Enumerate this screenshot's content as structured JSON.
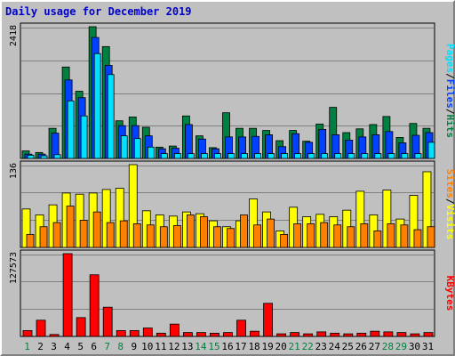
{
  "title": "Daily usage for December 2019",
  "colors": {
    "hits": "#008040",
    "files": "#0040ff",
    "pages": "#00e0ff",
    "visits": "#ffff00",
    "sites": "#ff8000",
    "kbytes": "#ff0000",
    "weekday_label": "#000000",
    "weekend_label": "#008040"
  },
  "chart_data": [
    {
      "type": "bar",
      "ylim": [
        0,
        2418
      ],
      "max_label": "2418",
      "legend_labels": {
        "pages": "Pages",
        "files": "Files",
        "hits": "Hits"
      },
      "legend_separator": "/",
      "categories": [
        "1",
        "2",
        "3",
        "4",
        "5",
        "6",
        "7",
        "8",
        "9",
        "10",
        "11",
        "12",
        "13",
        "14",
        "15",
        "16",
        "17",
        "18",
        "19",
        "20",
        "21",
        "22",
        "23",
        "24",
        "25",
        "26",
        "27",
        "28",
        "29",
        "30",
        "31"
      ],
      "series": [
        {
          "name": "Hits",
          "values": [
            140,
            110,
            560,
            1700,
            1250,
            2450,
            2080,
            700,
            770,
            580,
            210,
            230,
            790,
            420,
            200,
            850,
            560,
            560,
            520,
            330,
            520,
            320,
            640,
            950,
            480,
            550,
            630,
            780,
            390,
            650,
            560
          ]
        },
        {
          "name": "Files",
          "values": [
            80,
            80,
            470,
            1460,
            1130,
            2250,
            1730,
            610,
            610,
            420,
            180,
            190,
            630,
            360,
            180,
            400,
            400,
            410,
            440,
            220,
            460,
            300,
            540,
            440,
            340,
            400,
            440,
            500,
            290,
            430,
            480
          ]
        },
        {
          "name": "Pages",
          "values": [
            60,
            50,
            70,
            1070,
            790,
            1950,
            1560,
            420,
            370,
            210,
            90,
            90,
            90,
            90,
            90,
            90,
            90,
            90,
            90,
            90,
            90,
            90,
            90,
            90,
            90,
            90,
            90,
            90,
            90,
            90,
            300
          ]
        }
      ]
    },
    {
      "type": "bar",
      "ylim": [
        0,
        136
      ],
      "max_label": "136",
      "legend_labels": {
        "sites": "Sites",
        "visits": "Visits"
      },
      "legend_separator": "/",
      "categories": [
        "1",
        "2",
        "3",
        "4",
        "5",
        "6",
        "7",
        "8",
        "9",
        "10",
        "11",
        "12",
        "13",
        "14",
        "15",
        "16",
        "17",
        "18",
        "19",
        "20",
        "21",
        "22",
        "23",
        "24",
        "25",
        "26",
        "27",
        "28",
        "29",
        "30",
        "31"
      ],
      "series": [
        {
          "name": "Visits",
          "values": [
            65,
            55,
            72,
            92,
            90,
            92,
            98,
            100,
            140,
            62,
            55,
            53,
            60,
            57,
            45,
            35,
            45,
            82,
            60,
            28,
            68,
            52,
            56,
            52,
            63,
            95,
            55,
            97,
            48,
            88,
            128
          ]
        },
        {
          "name": "Sites",
          "values": [
            22,
            35,
            42,
            70,
            46,
            60,
            42,
            45,
            40,
            38,
            35,
            37,
            55,
            52,
            35,
            32,
            55,
            38,
            48,
            22,
            40,
            40,
            42,
            38,
            35,
            40,
            28,
            40,
            38,
            30,
            35
          ]
        }
      ]
    },
    {
      "type": "bar",
      "ylim": [
        0,
        127573
      ],
      "max_label": "127573",
      "legend_labels": {
        "kbytes": "KBytes"
      },
      "categories": [
        "1",
        "2",
        "3",
        "4",
        "5",
        "6",
        "7",
        "8",
        "9",
        "10",
        "11",
        "12",
        "13",
        "14",
        "15",
        "16",
        "17",
        "18",
        "19",
        "20",
        "21",
        "22",
        "23",
        "24",
        "25",
        "26",
        "27",
        "28",
        "29",
        "30",
        "31"
      ],
      "series": [
        {
          "name": "KBytes",
          "values": [
            9000,
            25000,
            3000,
            127573,
            29000,
            95000,
            45000,
            9000,
            9000,
            13000,
            5000,
            19000,
            6000,
            6000,
            5000,
            6000,
            25000,
            8000,
            51000,
            4000,
            6000,
            4000,
            7000,
            5000,
            4000,
            5000,
            8000,
            7000,
            6000,
            4000,
            6000
          ]
        }
      ]
    }
  ],
  "weekend_days": [
    1,
    7,
    8,
    14,
    15,
    21,
    22,
    28,
    29
  ]
}
